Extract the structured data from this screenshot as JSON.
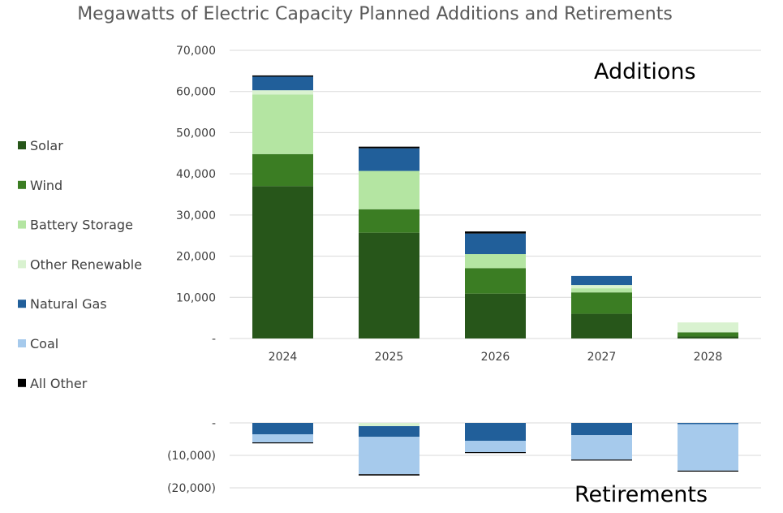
{
  "chart_data": {
    "type": "bar",
    "stacked": true,
    "title": "Megawatts of Electric Capacity Planned Additions and Retirements",
    "categories": [
      "2024",
      "2025",
      "2026",
      "2027",
      "2028"
    ],
    "series": [
      {
        "name": "Solar",
        "color": "#27561a"
      },
      {
        "name": "Wind",
        "color": "#3b7d23"
      },
      {
        "name": "Battery Storage",
        "color": "#b4e5a2"
      },
      {
        "name": "Other Renewable",
        "color": "#d9f2d0"
      },
      {
        "name": "Natural Gas",
        "color": "#215f9a"
      },
      {
        "name": "Coal",
        "color": "#a6caec"
      },
      {
        "name": "All Other",
        "color": "#000000"
      }
    ],
    "panels": [
      {
        "name": "additions",
        "annotation": "Additions",
        "ylim": [
          0,
          70000
        ],
        "y_ticks": [
          0,
          10000,
          20000,
          30000,
          40000,
          50000,
          60000,
          70000
        ],
        "y_tick_labels": [
          "-",
          "10,000",
          "20,000",
          "30,000",
          "40,000",
          "50,000",
          "60,000",
          "70,000"
        ],
        "values": {
          "Solar": [
            37000,
            25700,
            10900,
            6000,
            500
          ],
          "Wind": [
            7800,
            5700,
            6200,
            5200,
            1000
          ],
          "Battery Storage": [
            14500,
            9300,
            3400,
            1000,
            0
          ],
          "Other Renewable": [
            1000,
            0,
            0,
            800,
            2400
          ],
          "Natural Gas": [
            3300,
            5500,
            5000,
            2200,
            0
          ],
          "Coal": [
            0,
            0,
            0,
            0,
            0
          ],
          "All Other": [
            300,
            400,
            500,
            0,
            0
          ]
        }
      },
      {
        "name": "retirements",
        "annotation": "Retirements",
        "ylim": [
          -20000,
          0
        ],
        "y_ticks": [
          0,
          -10000,
          -20000
        ],
        "y_tick_labels": [
          "-",
          "(10,000)",
          "(20,000)"
        ],
        "values": {
          "Solar": [
            0,
            0,
            0,
            0,
            0
          ],
          "Wind": [
            0,
            0,
            0,
            0,
            0
          ],
          "Battery Storage": [
            0,
            0,
            0,
            0,
            0
          ],
          "Other Renewable": [
            0,
            -1000,
            0,
            0,
            0
          ],
          "Natural Gas": [
            -3500,
            -3300,
            -5500,
            -3800,
            -400
          ],
          "Coal": [
            -2500,
            -11500,
            -3500,
            -7500,
            -14300
          ],
          "All Other": [
            -200,
            -400,
            -200,
            -100,
            -200
          ]
        }
      }
    ],
    "legend_position": "left"
  }
}
